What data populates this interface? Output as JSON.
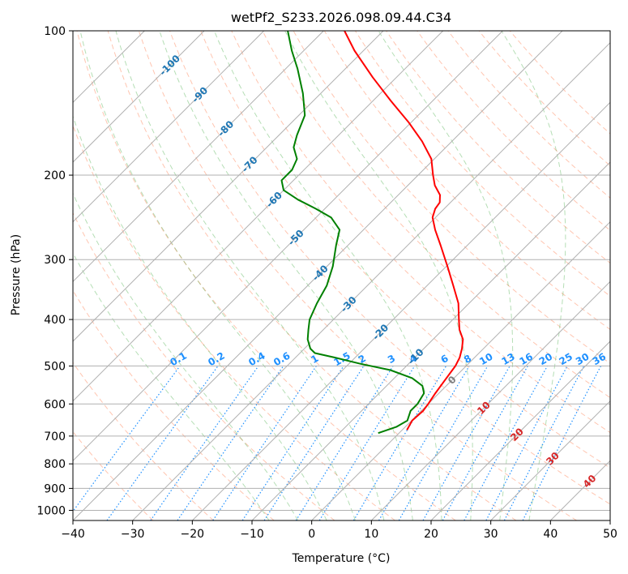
{
  "chart_data": {
    "type": "line",
    "title": "wetPf2_S233.2026.098.09.44.C34",
    "xlabel": "Temperature (°C)",
    "ylabel": "Pressure (hPa)",
    "xlim": [
      -40,
      50
    ],
    "ylim": [
      1050,
      100
    ],
    "x_ticks": [
      -40,
      -30,
      -20,
      -10,
      0,
      10,
      20,
      30,
      40,
      50
    ],
    "y_ticks": [
      100,
      200,
      300,
      400,
      500,
      600,
      700,
      800,
      900,
      1000
    ],
    "grid": true,
    "series": [
      {
        "name": "temperature",
        "color": "#ff0000",
        "points": [
          {
            "p": 680,
            "t": 0.8
          },
          {
            "p": 650,
            "t": 0.1
          },
          {
            "p": 620,
            "t": 0.3
          },
          {
            "p": 600,
            "t": 0.0
          },
          {
            "p": 570,
            "t": -0.6
          },
          {
            "p": 540,
            "t": -1.1
          },
          {
            "p": 500,
            "t": -1.8
          },
          {
            "p": 480,
            "t": -2.5
          },
          {
            "p": 460,
            "t": -3.6
          },
          {
            "p": 440,
            "t": -5.0
          },
          {
            "p": 420,
            "t": -7.2
          },
          {
            "p": 400,
            "t": -9.0
          },
          {
            "p": 370,
            "t": -11.8
          },
          {
            "p": 340,
            "t": -15.6
          },
          {
            "p": 310,
            "t": -19.8
          },
          {
            "p": 280,
            "t": -24.5
          },
          {
            "p": 260,
            "t": -28.0
          },
          {
            "p": 245,
            "t": -30.5
          },
          {
            "p": 235,
            "t": -31.5
          },
          {
            "p": 228,
            "t": -31.8
          },
          {
            "p": 220,
            "t": -33.0
          },
          {
            "p": 210,
            "t": -35.5
          },
          {
            "p": 200,
            "t": -37.5
          },
          {
            "p": 185,
            "t": -40.5
          },
          {
            "p": 170,
            "t": -45.0
          },
          {
            "p": 155,
            "t": -50.5
          },
          {
            "p": 140,
            "t": -57.0
          },
          {
            "p": 125,
            "t": -64.0
          },
          {
            "p": 110,
            "t": -71.5
          },
          {
            "p": 100,
            "t": -76.5
          }
        ]
      },
      {
        "name": "dewpoint",
        "color": "#008000",
        "points": [
          {
            "p": 690,
            "t": -3.5
          },
          {
            "p": 670,
            "t": -1.5
          },
          {
            "p": 650,
            "t": -0.7
          },
          {
            "p": 620,
            "t": -1.8
          },
          {
            "p": 600,
            "t": -1.8
          },
          {
            "p": 570,
            "t": -2.5
          },
          {
            "p": 550,
            "t": -4.0
          },
          {
            "p": 530,
            "t": -7.0
          },
          {
            "p": 510,
            "t": -12.0
          },
          {
            "p": 495,
            "t": -18.0
          },
          {
            "p": 480,
            "t": -23.5
          },
          {
            "p": 470,
            "t": -27.5
          },
          {
            "p": 460,
            "t": -29.0
          },
          {
            "p": 440,
            "t": -31.0
          },
          {
            "p": 420,
            "t": -32.5
          },
          {
            "p": 400,
            "t": -34.0
          },
          {
            "p": 370,
            "t": -35.5
          },
          {
            "p": 340,
            "t": -36.8
          },
          {
            "p": 310,
            "t": -39.0
          },
          {
            "p": 280,
            "t": -42.0
          },
          {
            "p": 260,
            "t": -44.0
          },
          {
            "p": 245,
            "t": -47.5
          },
          {
            "p": 235,
            "t": -51.5
          },
          {
            "p": 225,
            "t": -56.0
          },
          {
            "p": 215,
            "t": -60.0
          },
          {
            "p": 205,
            "t": -62.0
          },
          {
            "p": 195,
            "t": -62.0
          },
          {
            "p": 185,
            "t": -63.0
          },
          {
            "p": 175,
            "t": -65.5
          },
          {
            "p": 165,
            "t": -67.0
          },
          {
            "p": 150,
            "t": -69.0
          },
          {
            "p": 135,
            "t": -73.0
          },
          {
            "p": 120,
            "t": -78.0
          },
          {
            "p": 110,
            "t": -82.0
          },
          {
            "p": 100,
            "t": -86.0
          }
        ]
      }
    ],
    "isotherms": [
      -110,
      -100,
      -90,
      -80,
      -70,
      -60,
      -50,
      -40,
      -30,
      -20,
      -10,
      0,
      10,
      20,
      30,
      40,
      50
    ],
    "isotherm_labels": [
      {
        "text": "-100",
        "t": -100,
        "p": 118
      },
      {
        "text": "-90",
        "t": -90,
        "p": 136
      },
      {
        "text": "-80",
        "t": -80,
        "p": 160
      },
      {
        "text": "-70",
        "t": -70,
        "p": 190
      },
      {
        "text": "-60",
        "t": -60,
        "p": 225
      },
      {
        "text": "-50",
        "t": -50,
        "p": 270
      },
      {
        "text": "-40",
        "t": -40,
        "p": 320
      },
      {
        "text": "-30",
        "t": -30,
        "p": 372
      },
      {
        "text": "-20",
        "t": -20,
        "p": 425
      },
      {
        "text": "-10",
        "t": -10,
        "p": 478
      },
      {
        "text": "0",
        "t": 0,
        "p": 535
      },
      {
        "text": "10",
        "t": 10,
        "p": 612
      },
      {
        "text": "20",
        "t": 20,
        "p": 695
      },
      {
        "text": "30",
        "t": 30,
        "p": 780
      },
      {
        "text": "40",
        "t": 40,
        "p": 870
      }
    ],
    "mixing_ratio_labels": [
      "0.1",
      "0.2",
      "0.4",
      "0.6",
      "1",
      "1.5",
      "2",
      "3",
      "4",
      "6",
      "8",
      "10",
      "13",
      "16",
      "20",
      "25",
      "30",
      "36"
    ],
    "mixing_ratio_label_pressure": 500,
    "dry_adiabats_theta_c": [
      -30,
      -20,
      -10,
      0,
      10,
      20,
      30,
      40,
      50,
      60,
      70,
      80,
      90,
      100,
      110,
      120,
      130,
      140,
      150,
      160
    ],
    "moist_adiabats_c": [
      -10,
      -5,
      0,
      5,
      10,
      15,
      20,
      25,
      30,
      35
    ]
  },
  "colors": {
    "temperature": "#ff0000",
    "dewpoint": "#008000",
    "isotherm_label": "#1f77b4",
    "mixing_ratio": "#1e90ff",
    "dry_adiabat": "#ff7f50",
    "moist_adiabat": "#2ca02c",
    "grid": "#b0b0b0",
    "freezing_label": "#808080",
    "warm_label": "#d62728"
  }
}
